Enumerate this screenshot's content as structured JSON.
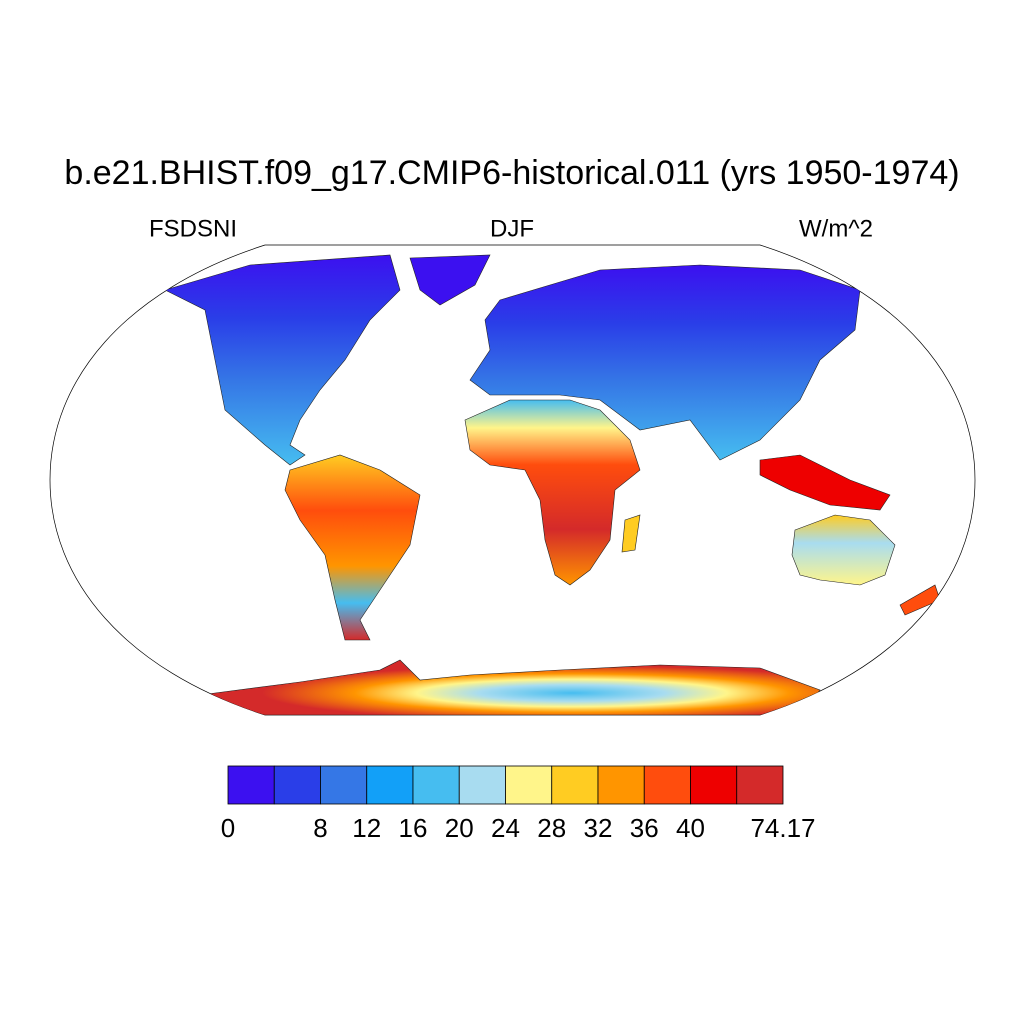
{
  "title": "b.e21.BHIST.f09_g17.CMIP6-historical.011 (yrs 1950-1974)",
  "left_label": "FSDSNI",
  "center_label": "DJF",
  "right_label": "W/m^2",
  "colorbar": {
    "colors": [
      "#3c10f0",
      "#2a3ee8",
      "#3577e6",
      "#12a0f8",
      "#46bdf0",
      "#a8dcf0",
      "#fff58a",
      "#ffcc22",
      "#ff9500",
      "#ff4d0d",
      "#ee0000",
      "#d42a2a"
    ],
    "labels": [
      0,
      null,
      8,
      12,
      16,
      20,
      24,
      28,
      32,
      36,
      40,
      null,
      74.17
    ]
  }
}
